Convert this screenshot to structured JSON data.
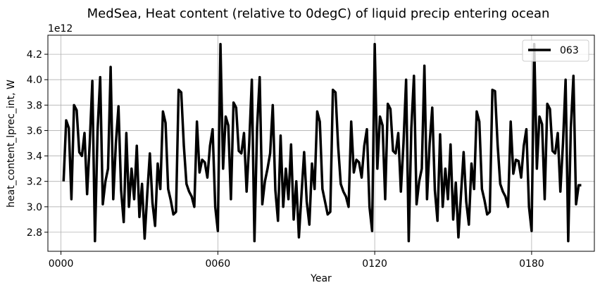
{
  "chart_data": {
    "type": "line",
    "title": "MedSea, Heat content (relative to 0degC) of liquid precip entering ocean",
    "xlabel": "Year",
    "ylabel": "heat_content_lprec_int, W",
    "y_scale_label": "1e12",
    "y_multiplier": 1000000000000.0,
    "xlim": [
      -5,
      204
    ],
    "ylim": [
      2.65,
      4.35
    ],
    "x_ticks": [
      0,
      60,
      120,
      180
    ],
    "x_tick_labels": [
      "0000",
      "0060",
      "0120",
      "0180"
    ],
    "y_ticks": [
      2.8,
      3.0,
      3.2,
      3.4,
      3.6,
      3.8,
      4.0,
      4.2
    ],
    "y_tick_labels": [
      "2.8",
      "3.0",
      "3.2",
      "3.4",
      "3.6",
      "3.8",
      "4.0",
      "4.2"
    ],
    "grid": true,
    "legend_position": "top-right",
    "series": [
      {
        "name": "063",
        "color": "#000000",
        "x_start": 1,
        "x_step": 1,
        "values": [
          3.2,
          3.68,
          3.62,
          3.06,
          3.8,
          3.76,
          3.43,
          3.4,
          3.58,
          3.1,
          3.5,
          3.99,
          2.73,
          3.6,
          4.02,
          3.02,
          3.2,
          3.3,
          4.1,
          3.06,
          3.5,
          3.79,
          3.13,
          2.88,
          3.58,
          3.0,
          3.3,
          3.06,
          3.48,
          2.92,
          3.18,
          2.75,
          3.1,
          3.42,
          3.03,
          2.85,
          3.34,
          3.14,
          3.75,
          3.66,
          3.14,
          3.05,
          2.94,
          2.96,
          3.92,
          3.9,
          3.48,
          3.18,
          3.12,
          3.08,
          3.0,
          3.67,
          3.27,
          3.37,
          3.35,
          3.23,
          3.48,
          3.61,
          3.0,
          2.81,
          4.28,
          3.3,
          3.71,
          3.64,
          3.06,
          3.82,
          3.78,
          3.44,
          3.42,
          3.58,
          3.12,
          3.5,
          4.0,
          2.73,
          3.62,
          4.02,
          3.02,
          3.2,
          3.3,
          3.42,
          3.8,
          3.13,
          2.89,
          3.56,
          3.0,
          3.3,
          3.06,
          3.49,
          2.9,
          3.2,
          2.76,
          3.1,
          3.43,
          3.04,
          2.86,
          3.34,
          3.14,
          3.75,
          3.67,
          3.14,
          3.04,
          2.94,
          2.96,
          3.92,
          3.9,
          3.48,
          3.18,
          3.12,
          3.08,
          3.0,
          3.67,
          3.27,
          3.37,
          3.35,
          3.23,
          3.48,
          3.61,
          3.0,
          2.81,
          4.28,
          3.3,
          3.71,
          3.64,
          3.06,
          3.81,
          3.77,
          3.44,
          3.42,
          3.58,
          3.12,
          3.5,
          4.0,
          2.73,
          3.62,
          4.03,
          3.02,
          3.2,
          3.3,
          4.11,
          3.06,
          3.5,
          3.78,
          3.13,
          2.89,
          3.57,
          3.0,
          3.3,
          3.06,
          3.49,
          2.9,
          3.19,
          2.76,
          3.1,
          3.43,
          3.04,
          2.86,
          3.34,
          3.14,
          3.75,
          3.67,
          3.14,
          3.05,
          2.94,
          2.96,
          3.92,
          3.91,
          3.49,
          3.18,
          3.12,
          3.08,
          3.0,
          3.67,
          3.26,
          3.37,
          3.36,
          3.23,
          3.48,
          3.61,
          3.0,
          2.81,
          4.28,
          3.3,
          3.71,
          3.65,
          3.06,
          3.81,
          3.77,
          3.44,
          3.42,
          3.58,
          3.12,
          3.5,
          4.0,
          2.73,
          3.62,
          4.03,
          3.02,
          3.17,
          3.17
        ]
      }
    ]
  }
}
